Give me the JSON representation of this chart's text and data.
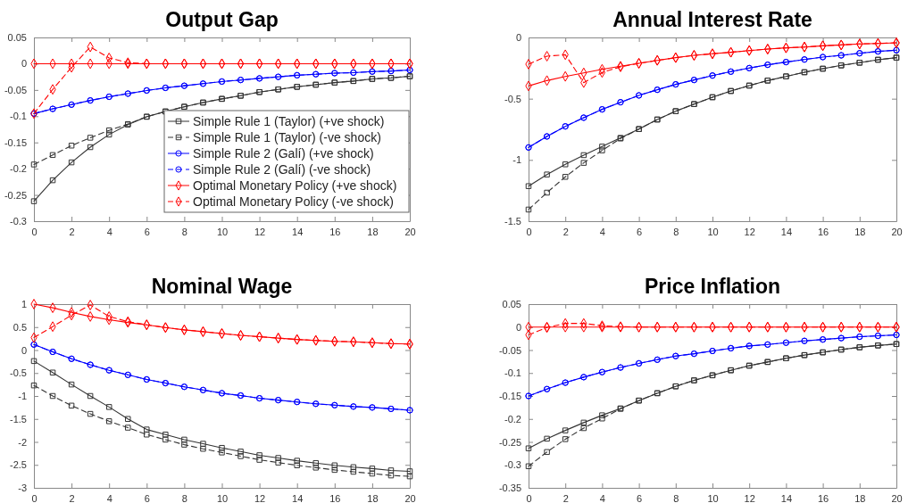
{
  "chart_data": [
    {
      "type": "line",
      "title": "Output Gap",
      "x": [
        0,
        1,
        2,
        3,
        4,
        5,
        6,
        7,
        8,
        9,
        10,
        11,
        12,
        13,
        14,
        15,
        16,
        17,
        18,
        19,
        20
      ],
      "xlim": [
        0,
        20
      ],
      "xticks": [
        0,
        2,
        4,
        6,
        8,
        10,
        12,
        14,
        16,
        18,
        20
      ],
      "ylim": [
        -0.3,
        0.05
      ],
      "yticks": [
        -0.3,
        -0.25,
        -0.2,
        -0.15,
        -0.1,
        -0.05,
        0,
        0.05
      ],
      "legend": "bottom right",
      "series": [
        {
          "name": "Simple Rule 1 (Taylor) (+ve shock)",
          "color": "#333333",
          "marker": "square",
          "line_style": "solid",
          "values": [
            -0.262,
            -0.222,
            -0.188,
            -0.159,
            -0.135,
            -0.116,
            -0.101,
            -0.091,
            -0.082,
            -0.074,
            -0.067,
            -0.061,
            -0.054,
            -0.049,
            -0.044,
            -0.04,
            -0.036,
            -0.033,
            -0.029,
            -0.027,
            -0.024
          ]
        },
        {
          "name": "Simple Rule 1 (Taylor) (-ve shock)",
          "color": "#333333",
          "marker": "square",
          "line_style": "dashed",
          "values": [
            -0.192,
            -0.174,
            -0.156,
            -0.141,
            -0.127,
            -0.115,
            -0.101,
            -0.091,
            -0.082,
            -0.074,
            -0.067,
            -0.061,
            -0.054,
            -0.049,
            -0.044,
            -0.04,
            -0.036,
            -0.033,
            -0.029,
            -0.027,
            -0.024
          ]
        },
        {
          "name": "Simple Rule 2 (Galí) (+ve shock)",
          "color": "#0000ff",
          "marker": "circle",
          "line_style": "solid",
          "values": [
            -0.095,
            -0.086,
            -0.078,
            -0.07,
            -0.063,
            -0.057,
            -0.051,
            -0.046,
            -0.042,
            -0.038,
            -0.034,
            -0.031,
            -0.028,
            -0.025,
            -0.022,
            -0.02,
            -0.018,
            -0.017,
            -0.015,
            -0.014,
            -0.012
          ]
        },
        {
          "name": "Simple Rule 2 (Galí) (-ve shock)",
          "color": "#0000ff",
          "marker": "circle",
          "line_style": "dashed",
          "values": [
            -0.095,
            -0.086,
            -0.078,
            -0.07,
            -0.063,
            -0.057,
            -0.051,
            -0.046,
            -0.042,
            -0.038,
            -0.034,
            -0.031,
            -0.028,
            -0.025,
            -0.022,
            -0.02,
            -0.018,
            -0.017,
            -0.015,
            -0.014,
            -0.012
          ]
        },
        {
          "name": "Optimal Monetary Policy (+ve shock)",
          "color": "#ff0000",
          "marker": "diamond",
          "line_style": "solid",
          "values": [
            0,
            0,
            0,
            0,
            0,
            0,
            0,
            0,
            0,
            0,
            0,
            0,
            0,
            0,
            0,
            0,
            0,
            0,
            0,
            0,
            0
          ]
        },
        {
          "name": "Optimal Monetary Policy (-ve shock)",
          "color": "#ff0000",
          "marker": "diamond",
          "line_style": "dashed",
          "values": [
            -0.095,
            -0.049,
            -0.007,
            0.032,
            0.011,
            0.002,
            0,
            0,
            0,
            0,
            0,
            0,
            0,
            0,
            0,
            0,
            0,
            0,
            0,
            0,
            0
          ]
        }
      ]
    },
    {
      "type": "line",
      "title": "Annual Interest Rate",
      "x": [
        0,
        1,
        2,
        3,
        4,
        5,
        6,
        7,
        8,
        9,
        10,
        11,
        12,
        13,
        14,
        15,
        16,
        17,
        18,
        19,
        20
      ],
      "xlim": [
        0,
        20
      ],
      "xticks": [
        0,
        2,
        4,
        6,
        8,
        10,
        12,
        14,
        16,
        18,
        20
      ],
      "ylim": [
        -1.5,
        0
      ],
      "yticks": [
        -1.5,
        -1,
        -0.5,
        0
      ],
      "series": [
        {
          "color": "#333333",
          "marker": "square",
          "line_style": "solid",
          "values": [
            -1.214,
            -1.119,
            -1.036,
            -0.961,
            -0.891,
            -0.82,
            -0.748,
            -0.67,
            -0.602,
            -0.544,
            -0.488,
            -0.437,
            -0.393,
            -0.352,
            -0.318,
            -0.284,
            -0.255,
            -0.228,
            -0.206,
            -0.182,
            -0.165
          ]
        },
        {
          "color": "#333333",
          "marker": "square",
          "line_style": "dashed",
          "values": [
            -1.405,
            -1.267,
            -1.138,
            -1.024,
            -0.922,
            -0.825,
            -0.748,
            -0.67,
            -0.602,
            -0.544,
            -0.488,
            -0.437,
            -0.393,
            -0.352,
            -0.318,
            -0.284,
            -0.255,
            -0.228,
            -0.206,
            -0.182,
            -0.165
          ]
        },
        {
          "color": "#0000ff",
          "marker": "circle",
          "line_style": "solid",
          "values": [
            -0.898,
            -0.808,
            -0.726,
            -0.655,
            -0.587,
            -0.529,
            -0.473,
            -0.427,
            -0.383,
            -0.347,
            -0.311,
            -0.279,
            -0.25,
            -0.223,
            -0.201,
            -0.18,
            -0.16,
            -0.146,
            -0.129,
            -0.114,
            -0.104
          ]
        },
        {
          "color": "#0000ff",
          "marker": "circle",
          "line_style": "dashed",
          "values": [
            -0.898,
            -0.808,
            -0.726,
            -0.655,
            -0.587,
            -0.529,
            -0.473,
            -0.427,
            -0.383,
            -0.347,
            -0.311,
            -0.279,
            -0.25,
            -0.223,
            -0.201,
            -0.18,
            -0.16,
            -0.146,
            -0.129,
            -0.114,
            -0.104
          ]
        },
        {
          "color": "#ff0000",
          "marker": "diamond",
          "line_style": "solid",
          "values": [
            -0.396,
            -0.352,
            -0.318,
            -0.289,
            -0.26,
            -0.235,
            -0.211,
            -0.187,
            -0.165,
            -0.146,
            -0.133,
            -0.121,
            -0.107,
            -0.095,
            -0.085,
            -0.078,
            -0.068,
            -0.061,
            -0.053,
            -0.049,
            -0.044
          ]
        },
        {
          "color": "#ff0000",
          "marker": "diamond",
          "line_style": "dashed",
          "values": [
            -0.218,
            -0.153,
            -0.141,
            -0.369,
            -0.286,
            -0.24,
            -0.211,
            -0.187,
            -0.165,
            -0.146,
            -0.133,
            -0.121,
            -0.107,
            -0.095,
            -0.085,
            -0.078,
            -0.068,
            -0.061,
            -0.053,
            -0.049,
            -0.044
          ]
        }
      ]
    },
    {
      "type": "line",
      "title": "Nominal Wage",
      "x": [
        0,
        1,
        2,
        3,
        4,
        5,
        6,
        7,
        8,
        9,
        10,
        11,
        12,
        13,
        14,
        15,
        16,
        17,
        18,
        19,
        20
      ],
      "xlim": [
        0,
        20
      ],
      "xticks": [
        0,
        2,
        4,
        6,
        8,
        10,
        12,
        14,
        16,
        18,
        20
      ],
      "ylim": [
        -3,
        1
      ],
      "yticks": [
        -3,
        -2.5,
        -2,
        -1.5,
        -1,
        -0.5,
        0,
        0.5,
        1
      ],
      "series": [
        {
          "color": "#333333",
          "marker": "square",
          "line_style": "solid",
          "values": [
            -0.24,
            -0.49,
            -0.75,
            -1.0,
            -1.24,
            -1.5,
            -1.73,
            -1.84,
            -1.95,
            -2.04,
            -2.13,
            -2.21,
            -2.29,
            -2.35,
            -2.41,
            -2.46,
            -2.51,
            -2.55,
            -2.58,
            -2.62,
            -2.64
          ]
        },
        {
          "color": "#333333",
          "marker": "square",
          "line_style": "dashed",
          "values": [
            -0.77,
            -1.0,
            -1.21,
            -1.39,
            -1.55,
            -1.69,
            -1.84,
            -1.95,
            -2.06,
            -2.15,
            -2.23,
            -2.31,
            -2.39,
            -2.45,
            -2.51,
            -2.56,
            -2.61,
            -2.65,
            -2.69,
            -2.73,
            -2.75
          ]
        },
        {
          "color": "#0000ff",
          "marker": "circle",
          "line_style": "solid",
          "values": [
            0.12,
            -0.04,
            -0.19,
            -0.32,
            -0.44,
            -0.54,
            -0.64,
            -0.72,
            -0.8,
            -0.87,
            -0.94,
            -0.99,
            -1.05,
            -1.09,
            -1.13,
            -1.17,
            -1.2,
            -1.23,
            -1.25,
            -1.28,
            -1.31
          ]
        },
        {
          "color": "#0000ff",
          "marker": "circle",
          "line_style": "dashed",
          "values": [
            0.12,
            -0.04,
            -0.19,
            -0.32,
            -0.44,
            -0.54,
            -0.64,
            -0.72,
            -0.8,
            -0.87,
            -0.94,
            -0.99,
            -1.05,
            -1.09,
            -1.13,
            -1.17,
            -1.2,
            -1.23,
            -1.25,
            -1.28,
            -1.31
          ]
        },
        {
          "color": "#ff0000",
          "marker": "diamond",
          "line_style": "solid",
          "values": [
            1.0,
            0.92,
            0.82,
            0.73,
            0.66,
            0.6,
            0.55,
            0.49,
            0.44,
            0.4,
            0.36,
            0.32,
            0.29,
            0.26,
            0.23,
            0.21,
            0.19,
            0.18,
            0.16,
            0.14,
            0.13
          ]
        },
        {
          "color": "#ff0000",
          "marker": "diamond",
          "line_style": "dashed",
          "values": [
            0.27,
            0.51,
            0.76,
            0.98,
            0.73,
            0.62,
            0.55,
            0.49,
            0.44,
            0.4,
            0.36,
            0.32,
            0.29,
            0.26,
            0.23,
            0.21,
            0.19,
            0.18,
            0.16,
            0.14,
            0.13
          ]
        }
      ]
    },
    {
      "type": "line",
      "title": "Price Inflation",
      "x": [
        0,
        1,
        2,
        3,
        4,
        5,
        6,
        7,
        8,
        9,
        10,
        11,
        12,
        13,
        14,
        15,
        16,
        17,
        18,
        19,
        20
      ],
      "xlim": [
        0,
        20
      ],
      "xticks": [
        0,
        2,
        4,
        6,
        8,
        10,
        12,
        14,
        16,
        18,
        20
      ],
      "ylim": [
        -0.35,
        0.05
      ],
      "yticks": [
        -0.35,
        -0.3,
        -0.25,
        -0.2,
        -0.15,
        -0.1,
        -0.05,
        0,
        0.05
      ],
      "series": [
        {
          "color": "#333333",
          "marker": "square",
          "line_style": "solid",
          "values": [
            -0.264,
            -0.243,
            -0.225,
            -0.208,
            -0.192,
            -0.177,
            -0.16,
            -0.144,
            -0.129,
            -0.116,
            -0.105,
            -0.094,
            -0.084,
            -0.076,
            -0.068,
            -0.061,
            -0.055,
            -0.049,
            -0.044,
            -0.04,
            -0.037
          ]
        },
        {
          "color": "#333333",
          "marker": "square",
          "line_style": "dashed",
          "values": [
            -0.303,
            -0.272,
            -0.244,
            -0.22,
            -0.199,
            -0.178,
            -0.16,
            -0.144,
            -0.129,
            -0.116,
            -0.105,
            -0.094,
            -0.084,
            -0.076,
            -0.068,
            -0.061,
            -0.055,
            -0.049,
            -0.044,
            -0.04,
            -0.037
          ]
        },
        {
          "color": "#0000ff",
          "marker": "circle",
          "line_style": "solid",
          "values": [
            -0.15,
            -0.135,
            -0.121,
            -0.109,
            -0.098,
            -0.088,
            -0.079,
            -0.071,
            -0.063,
            -0.058,
            -0.052,
            -0.046,
            -0.041,
            -0.038,
            -0.034,
            -0.03,
            -0.027,
            -0.024,
            -0.021,
            -0.019,
            -0.017
          ]
        },
        {
          "color": "#0000ff",
          "marker": "circle",
          "line_style": "dashed",
          "values": [
            -0.15,
            -0.135,
            -0.121,
            -0.109,
            -0.098,
            -0.088,
            -0.079,
            -0.071,
            -0.063,
            -0.058,
            -0.052,
            -0.046,
            -0.041,
            -0.038,
            -0.034,
            -0.03,
            -0.027,
            -0.024,
            -0.021,
            -0.019,
            -0.017
          ]
        },
        {
          "color": "#ff0000",
          "marker": "diamond",
          "line_style": "solid",
          "values": [
            0,
            0,
            0,
            0,
            0,
            0,
            0,
            0,
            0,
            0,
            0,
            0,
            0,
            0,
            0,
            0,
            0,
            0,
            0,
            0,
            0
          ]
        },
        {
          "color": "#ff0000",
          "marker": "diamond",
          "line_style": "dashed",
          "values": [
            -0.017,
            -0.001,
            0.008,
            0.008,
            0.003,
            0.001,
            0,
            0,
            0,
            0,
            0,
            0,
            0,
            0,
            0,
            0,
            0,
            0,
            0,
            0,
            0
          ]
        }
      ]
    }
  ]
}
